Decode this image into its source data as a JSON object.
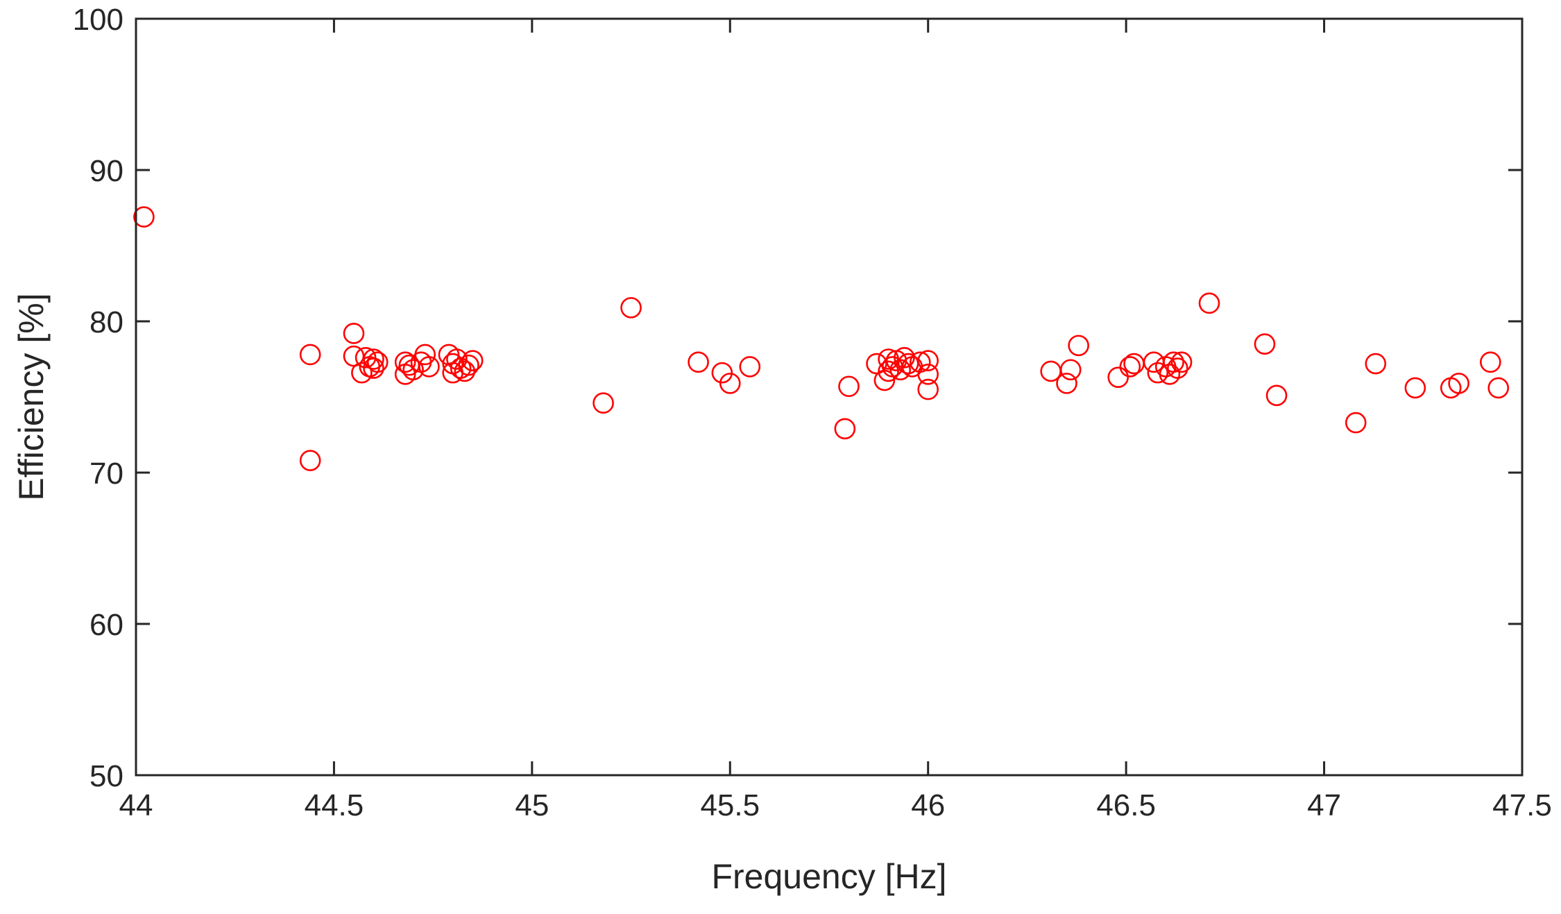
{
  "chart_data": {
    "type": "scatter",
    "title": "",
    "xlabel": "Frequency [Hz]",
    "ylabel": "Efficiency [%]",
    "xlim": [
      44,
      47.5
    ],
    "ylim": [
      50,
      100
    ],
    "xticks": [
      "44",
      "44.5",
      "45",
      "45.5",
      "46",
      "46.5",
      "47",
      "47.5"
    ],
    "yticks": [
      "50",
      "60",
      "70",
      "80",
      "90",
      "100"
    ],
    "grid": false,
    "marker": "open-circle",
    "marker_color": "#ff0000",
    "axis_color": "#262626",
    "series": [
      {
        "x": [
          44.02,
          44.44,
          44.44,
          44.55,
          44.55,
          44.57,
          44.58,
          44.59,
          44.6,
          44.6,
          44.61,
          44.68,
          44.68,
          44.69,
          44.7,
          44.72,
          44.73,
          44.74,
          44.79,
          44.8,
          44.8,
          44.81,
          44.82,
          44.83,
          44.84,
          44.85,
          45.18,
          45.25,
          45.42,
          45.48,
          45.5,
          45.55,
          45.79,
          45.8,
          45.87,
          45.89,
          45.9,
          45.9,
          45.91,
          45.92,
          45.93,
          45.94,
          45.95,
          45.96,
          45.98,
          46.0,
          46.0,
          46.0,
          46.31,
          46.35,
          46.36,
          46.38,
          46.48,
          46.51,
          46.52,
          46.57,
          46.58,
          46.6,
          46.61,
          46.62,
          46.63,
          46.64,
          46.71,
          46.85,
          46.88,
          47.08,
          47.13,
          47.23,
          47.32,
          47.34,
          47.42,
          47.44
        ],
        "y": [
          86.9,
          77.8,
          70.8,
          79.2,
          77.7,
          76.6,
          77.6,
          77.0,
          76.9,
          77.5,
          77.3,
          77.3,
          76.5,
          77.1,
          76.8,
          77.3,
          77.8,
          77.0,
          77.8,
          76.6,
          77.2,
          77.5,
          76.9,
          76.7,
          77.1,
          77.4,
          74.6,
          80.9,
          77.3,
          76.6,
          75.9,
          77.0,
          72.9,
          75.7,
          77.2,
          76.1,
          77.5,
          76.7,
          77.0,
          77.4,
          76.8,
          77.6,
          77.2,
          77.0,
          77.3,
          77.4,
          76.5,
          75.5,
          76.7,
          75.9,
          76.8,
          78.4,
          76.3,
          77.0,
          77.2,
          77.3,
          76.6,
          77.0,
          76.5,
          77.3,
          76.9,
          77.3,
          81.2,
          78.5,
          75.1,
          73.3,
          77.2,
          75.6,
          75.6,
          75.9,
          77.3,
          75.6
        ]
      }
    ]
  }
}
